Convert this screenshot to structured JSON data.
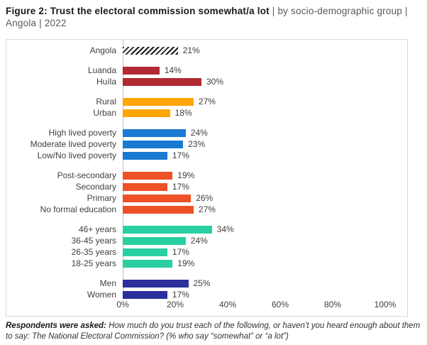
{
  "title": {
    "bold": "Figure 2: Trust the electoral commission somewhat/a lot",
    "rest": " | by socio-demographic group | Angola | 2022"
  },
  "footer": {
    "bold": "Respondents were asked:",
    "rest": " How much do you trust each of the following, or haven’t you heard enough about them to say: The National Electoral Commission? (% who say “somewhat” or “a lot”)"
  },
  "colors": {
    "hatch_stripe": "#1a1a1a",
    "region_red": "#b12a33",
    "location_orange": "#ffa502",
    "poverty_blue": "#187ad2",
    "education_orangered": "#ee5126",
    "age_teal": "#29cfa0",
    "gender_navy": "#2c2e9c",
    "axis_line": "#bfbfbf",
    "box_border": "#d9d9d9",
    "text": "#404040"
  },
  "chart_data": {
    "type": "bar",
    "orientation": "horizontal",
    "unit": "%",
    "xlim": [
      0,
      100
    ],
    "x_ticks": [
      "0%",
      "20%",
      "40%",
      "60%",
      "80%",
      "100%"
    ],
    "grid": false,
    "value_labels": true,
    "legend": "none",
    "groups": [
      {
        "color": "#1a1a1a",
        "pattern": "diagonal-hatch",
        "bars": [
          {
            "label": "Angola",
            "value": 21,
            "value_label": "21%"
          }
        ]
      },
      {
        "color": "#b12a33",
        "bars": [
          {
            "label": "Luanda",
            "value": 14,
            "value_label": "14%"
          },
          {
            "label": "Huíla",
            "value": 30,
            "value_label": "30%"
          }
        ]
      },
      {
        "color": "#ffa502",
        "bars": [
          {
            "label": "Rural",
            "value": 27,
            "value_label": "27%"
          },
          {
            "label": "Urban",
            "value": 18,
            "value_label": "18%"
          }
        ]
      },
      {
        "color": "#187ad2",
        "bars": [
          {
            "label": "High lived poverty",
            "value": 24,
            "value_label": "24%"
          },
          {
            "label": "Moderate lived poverty",
            "value": 23,
            "value_label": "23%"
          },
          {
            "label": "Low/No lived poverty",
            "value": 17,
            "value_label": "17%"
          }
        ]
      },
      {
        "color": "#ee5126",
        "bars": [
          {
            "label": "Post-secondary",
            "value": 19,
            "value_label": "19%"
          },
          {
            "label": "Secondary",
            "value": 17,
            "value_label": "17%"
          },
          {
            "label": "Primary",
            "value": 26,
            "value_label": "26%"
          },
          {
            "label": "No formal education",
            "value": 27,
            "value_label": "27%"
          }
        ]
      },
      {
        "color": "#29cfa0",
        "bars": [
          {
            "label": "46+ years",
            "value": 34,
            "value_label": "34%"
          },
          {
            "label": "36-45 years",
            "value": 24,
            "value_label": "24%"
          },
          {
            "label": "26-35 years",
            "value": 17,
            "value_label": "17%"
          },
          {
            "label": "18-25 years",
            "value": 19,
            "value_label": "19%"
          }
        ]
      },
      {
        "color": "#2c2e9c",
        "bars": [
          {
            "label": "Men",
            "value": 25,
            "value_label": "25%"
          },
          {
            "label": "Women",
            "value": 17,
            "value_label": "17%"
          }
        ]
      }
    ]
  }
}
